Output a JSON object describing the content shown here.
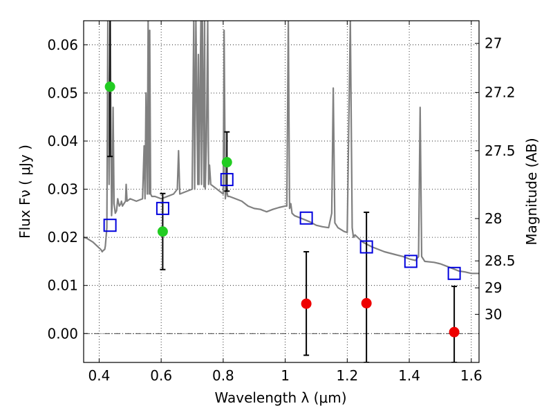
{
  "chart_data": {
    "type": "scatter",
    "xlabel": "Wavelength  λ (μm)",
    "ylabel": "Flux  Fν  ( μJy )",
    "y2label": "Magnitude (AB)",
    "xlim": [
      0.35,
      1.625
    ],
    "ylim": [
      -0.006,
      0.065
    ],
    "grid": true,
    "x_ticks": [
      0.4,
      0.6,
      0.8,
      1.0,
      1.2,
      1.4,
      1.6
    ],
    "x_tick_labels": [
      "0.4",
      "0.6",
      "0.8",
      "1",
      "1.2",
      "1.4",
      "1.6"
    ],
    "y_ticks": [
      0.0,
      0.01,
      0.02,
      0.03,
      0.04,
      0.05,
      0.06
    ],
    "y_tick_labels": [
      "0.00",
      "0.01",
      "0.02",
      "0.03",
      "0.04",
      "0.05",
      "0.06"
    ],
    "y2_ticks": [
      {
        "label": "27",
        "flux": 0.0603
      },
      {
        "label": "27.2",
        "flux": 0.0501
      },
      {
        "label": "27.5",
        "flux": 0.038
      },
      {
        "label": "28",
        "flux": 0.0239
      },
      {
        "label": "28.5",
        "flux": 0.0151
      },
      {
        "label": "29",
        "flux": 0.0095
      },
      {
        "label": "30",
        "flux": 0.004
      }
    ],
    "series": [
      {
        "kind": "spectrum",
        "color": "#808080",
        "x": [
          0.35,
          0.36,
          0.38,
          0.4,
          0.405,
          0.41,
          0.412,
          0.418,
          0.42,
          0.425,
          0.428,
          0.432,
          0.436,
          0.44,
          0.442,
          0.445,
          0.448,
          0.452,
          0.456,
          0.46,
          0.465,
          0.47,
          0.472,
          0.475,
          0.48,
          0.485,
          0.487,
          0.49,
          0.5,
          0.52,
          0.54,
          0.545,
          0.548,
          0.551,
          0.555,
          0.558,
          0.561,
          0.563,
          0.566,
          0.57,
          0.58,
          0.6,
          0.62,
          0.64,
          0.652,
          0.656,
          0.66,
          0.68,
          0.7,
          0.705,
          0.708,
          0.712,
          0.718,
          0.72,
          0.722,
          0.728,
          0.73,
          0.733,
          0.738,
          0.74,
          0.742,
          0.746,
          0.75,
          0.753,
          0.756,
          0.76,
          0.78,
          0.8,
          0.803,
          0.807,
          0.81,
          0.815,
          0.82,
          0.84,
          0.86,
          0.88,
          0.9,
          0.92,
          0.94,
          0.96,
          0.98,
          1.0,
          1.005,
          1.01,
          1.014,
          1.018,
          1.022,
          1.03,
          1.05,
          1.08,
          1.1,
          1.12,
          1.14,
          1.15,
          1.155,
          1.16,
          1.17,
          1.19,
          1.2,
          1.21,
          1.216,
          1.22,
          1.225,
          1.25,
          1.28,
          1.3,
          1.32,
          1.35,
          1.38,
          1.4,
          1.42,
          1.43,
          1.435,
          1.44,
          1.45,
          1.48,
          1.5,
          1.52,
          1.54,
          1.56,
          1.58,
          1.6,
          1.625
        ],
        "y": [
          0.02,
          0.0198,
          0.019,
          0.0178,
          0.0175,
          0.017,
          0.0172,
          0.0175,
          0.0182,
          0.022,
          0.065,
          0.031,
          0.065,
          0.0245,
          0.027,
          0.047,
          0.027,
          0.025,
          0.0255,
          0.028,
          0.0265,
          0.027,
          0.0275,
          0.0265,
          0.027,
          0.0275,
          0.031,
          0.0275,
          0.028,
          0.0275,
          0.028,
          0.039,
          0.028,
          0.05,
          0.029,
          0.065,
          0.029,
          0.063,
          0.029,
          0.0285,
          0.0285,
          0.028,
          0.0285,
          0.029,
          0.03,
          0.038,
          0.029,
          0.0295,
          0.03,
          0.065,
          0.03,
          0.065,
          0.031,
          0.058,
          0.031,
          0.065,
          0.031,
          0.065,
          0.0305,
          0.065,
          0.03,
          0.04,
          0.065,
          0.031,
          0.035,
          0.031,
          0.03,
          0.029,
          0.063,
          0.028,
          0.03,
          0.0285,
          0.0285,
          0.028,
          0.0275,
          0.0265,
          0.026,
          0.0258,
          0.0253,
          0.0258,
          0.0262,
          0.0265,
          0.0265,
          0.065,
          0.026,
          0.027,
          0.025,
          0.0245,
          0.024,
          0.0232,
          0.0225,
          0.0222,
          0.022,
          0.025,
          0.051,
          0.023,
          0.022,
          0.0212,
          0.021,
          0.065,
          0.022,
          0.02,
          0.0205,
          0.019,
          0.018,
          0.0175,
          0.017,
          0.0165,
          0.016,
          0.0155,
          0.0152,
          0.016,
          0.047,
          0.016,
          0.015,
          0.0148,
          0.0145,
          0.014,
          0.0135,
          0.013,
          0.0128,
          0.0125,
          0.0125
        ]
      },
      {
        "kind": "open-square",
        "color": "#0000dd",
        "x": [
          0.435,
          0.605,
          0.812,
          1.068,
          1.262,
          1.405,
          1.545
        ],
        "y": [
          0.0225,
          0.026,
          0.032,
          0.024,
          0.018,
          0.015,
          0.0125
        ]
      },
      {
        "kind": "filled-circle",
        "color": "#22cc22",
        "x": [
          0.435,
          0.605,
          0.812
        ],
        "y": [
          0.0513,
          0.0212,
          0.0356
        ],
        "err_low": [
          0.0145,
          0.0079,
          0.006
        ],
        "err_high": [
          0.0237,
          0.0079,
          0.0063
        ]
      },
      {
        "kind": "filled-circle",
        "color": "#ee0000",
        "x": [
          1.068,
          1.262,
          1.545
        ],
        "y": [
          0.0062,
          0.0063,
          0.0003
        ],
        "err_low": [
          0.0107,
          0.0123,
          0.0063
        ],
        "err_high": [
          0.0108,
          0.0189,
          0.0095
        ]
      }
    ]
  }
}
